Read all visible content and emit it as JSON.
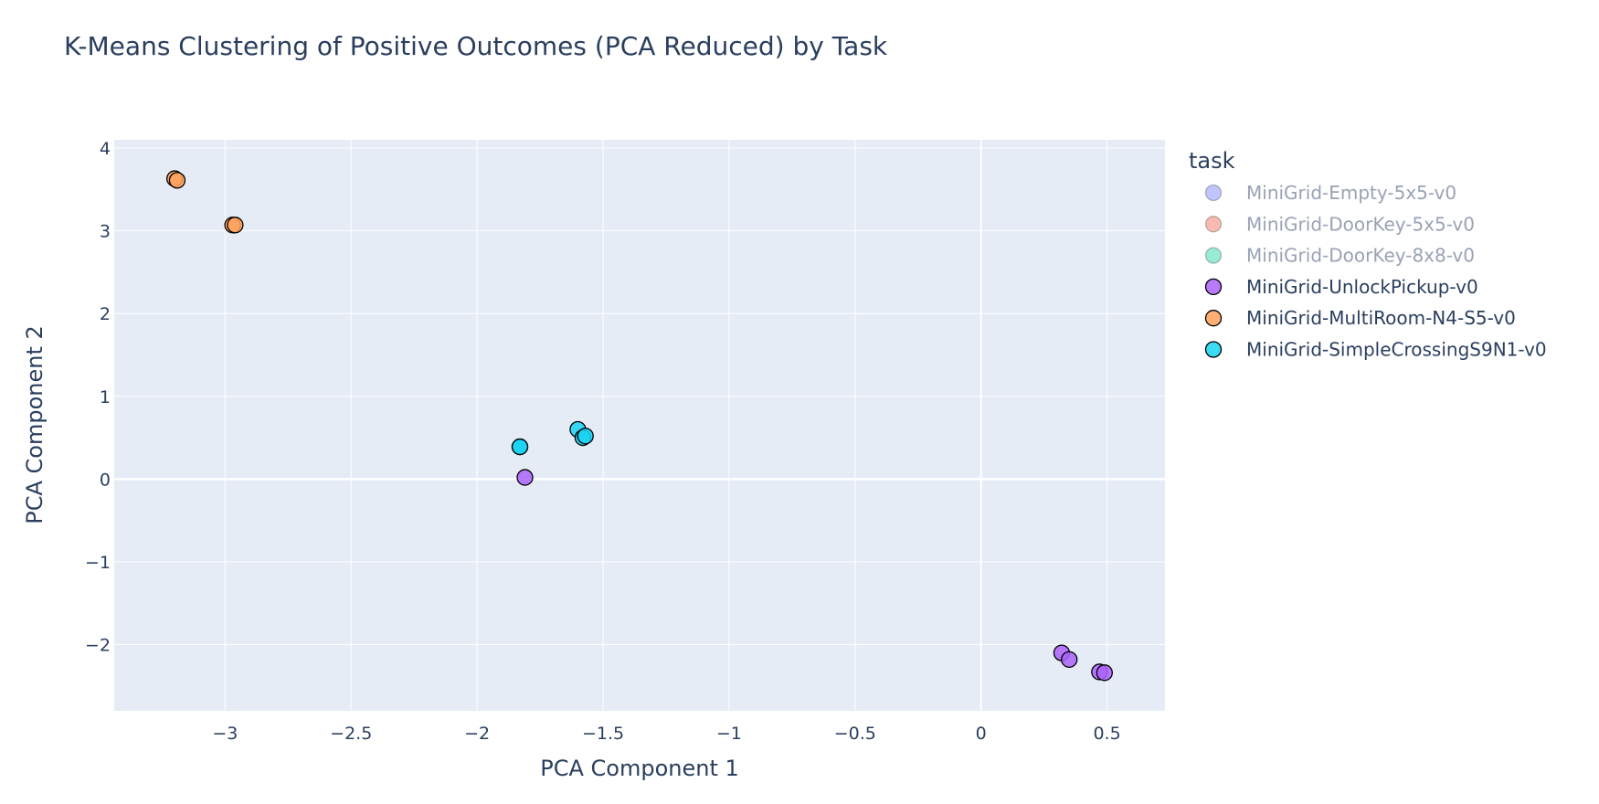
{
  "chart_data": {
    "type": "scatter",
    "title": "K-Means Clustering of Positive Outcomes (PCA Reduced) by Task",
    "xlabel": "PCA Component 1",
    "ylabel": "PCA Component 2",
    "xlim": [
      -3.44,
      0.73
    ],
    "ylim": [
      -2.8,
      4.1
    ],
    "xticks": [
      -3,
      -2.5,
      -2,
      -1.5,
      -1,
      -0.5,
      0,
      0.5
    ],
    "xtick_labels": [
      "−3",
      "−2.5",
      "−2",
      "−1.5",
      "−1",
      "−0.5",
      "0",
      "0.5"
    ],
    "yticks": [
      -2,
      -1,
      0,
      1,
      2,
      3,
      4
    ],
    "ytick_labels": [
      "−2",
      "−1",
      "0",
      "1",
      "2",
      "3",
      "4"
    ],
    "grid": true,
    "legend_title": "task",
    "legend_position": "right",
    "series": [
      {
        "name": "MiniGrid-Empty-5x5-v0",
        "color": "#636efa",
        "visible": false,
        "x": [],
        "y": []
      },
      {
        "name": "MiniGrid-DoorKey-5x5-v0",
        "color": "#ef553b",
        "visible": false,
        "x": [],
        "y": []
      },
      {
        "name": "MiniGrid-DoorKey-8x8-v0",
        "color": "#00cc96",
        "visible": false,
        "x": [],
        "y": []
      },
      {
        "name": "MiniGrid-UnlockPickup-v0",
        "color": "#ab63fa",
        "visible": true,
        "x": [
          -1.81,
          0.32,
          0.35,
          0.47,
          0.49
        ],
        "y": [
          0.02,
          -2.1,
          -2.18,
          -2.33,
          -2.34
        ]
      },
      {
        "name": "MiniGrid-MultiRoom-N4-S5-v0",
        "color": "#ffa15a",
        "visible": true,
        "x": [
          -3.2,
          -3.19,
          -2.97,
          -2.96
        ],
        "y": [
          3.63,
          3.61,
          3.07,
          3.07
        ]
      },
      {
        "name": "MiniGrid-SimpleCrossingS9N1-v0",
        "color": "#19d3f3",
        "visible": true,
        "x": [
          -1.83,
          -1.83,
          -1.6,
          -1.58,
          -1.57
        ],
        "y": [
          0.39,
          0.39,
          0.6,
          0.5,
          0.52
        ]
      }
    ]
  }
}
